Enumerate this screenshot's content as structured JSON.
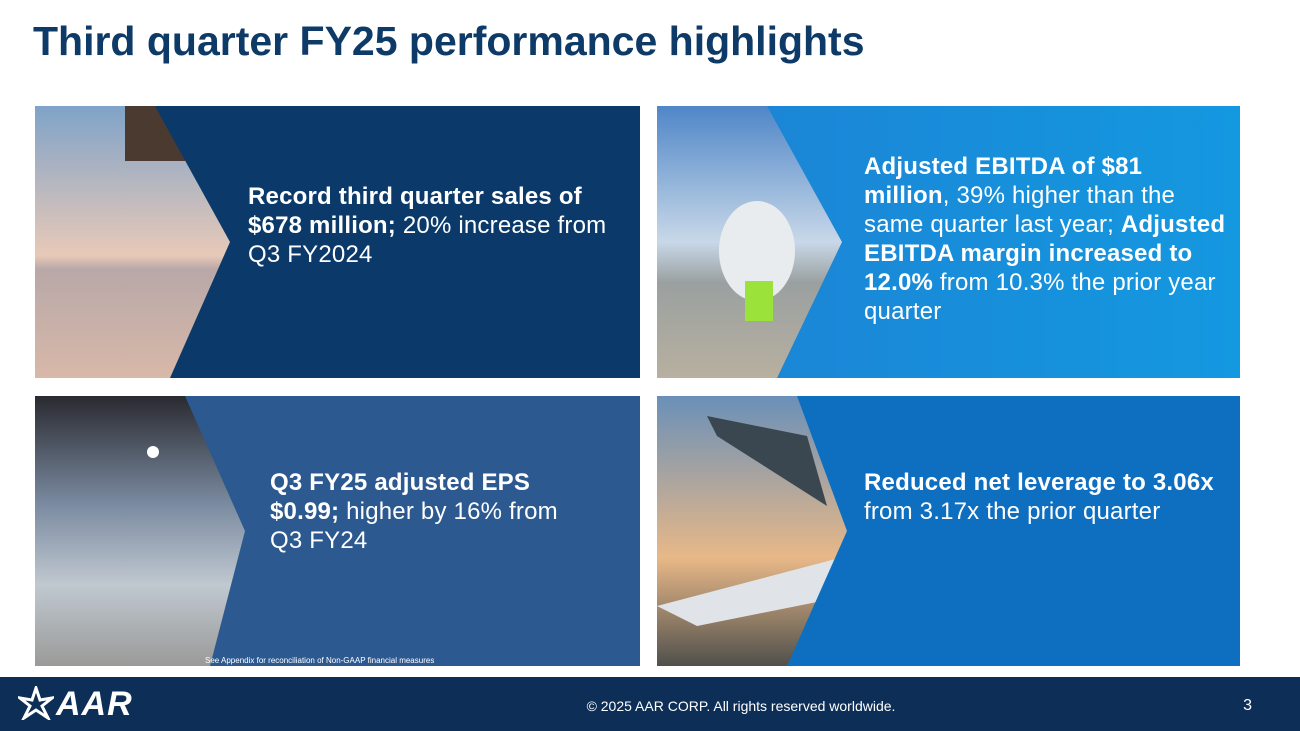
{
  "header": {
    "title": "Third quarter FY25 performance highlights"
  },
  "panels": [
    {
      "runs": [
        {
          "text": "Record third quarter sales of $678 million;",
          "bold": true
        },
        {
          "text": " 20% increase from Q3 FY2024",
          "bold": false
        }
      ]
    },
    {
      "runs": [
        {
          "text": "Adjusted EBITDA of $81 million",
          "bold": true
        },
        {
          "text": ", 39% higher than the same quarter last year; ",
          "bold": false
        },
        {
          "text": "Adjusted EBITDA margin increased to 12.0%",
          "bold": true
        },
        {
          "text": " from 10.3% the prior year quarter",
          "bold": false
        }
      ]
    },
    {
      "runs": [
        {
          "text": "Q3 FY25 adjusted EPS $0.99;",
          "bold": true
        },
        {
          "text": " higher by 16% from Q3 FY24",
          "bold": false
        }
      ]
    },
    {
      "runs": [
        {
          "text": "Reduced net leverage to 3.06x",
          "bold": true
        },
        {
          "text": " from 3.17x the prior quarter",
          "bold": false
        }
      ]
    }
  ],
  "footnote": "See Appendix for reconciliation of Non-GAAP financial measures",
  "footer": {
    "logo": "AAR",
    "copyright": "© 2025 AAR CORP. All rights reserved worldwide.",
    "page_number": "3"
  }
}
